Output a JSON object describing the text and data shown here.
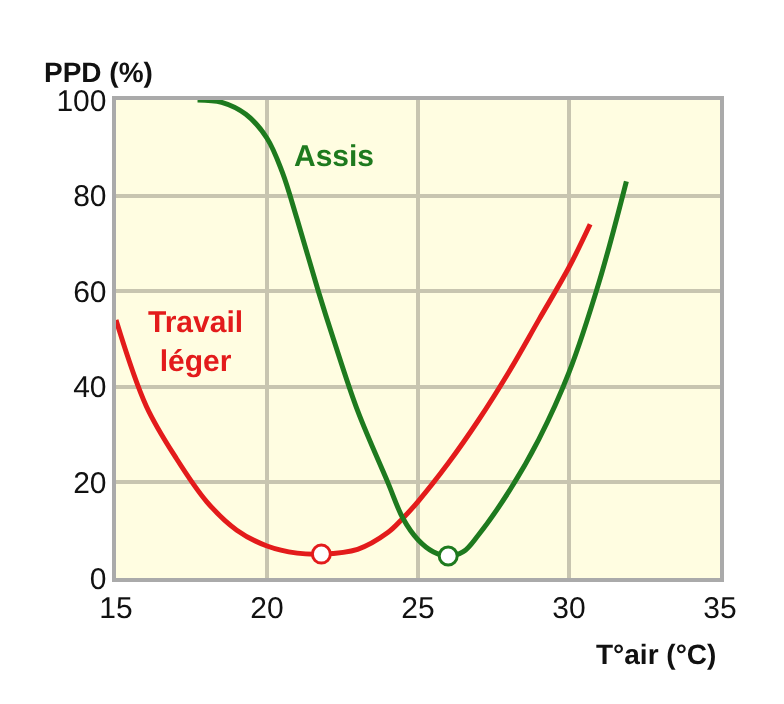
{
  "chart_data": {
    "type": "line",
    "xlabel": "T°air (°C)",
    "ylabel": "PPD (%)",
    "xlim": [
      15,
      35
    ],
    "xticks": [
      15,
      20,
      25,
      30,
      35
    ],
    "ylim": [
      0,
      100
    ],
    "yticks": [
      0,
      20,
      40,
      60,
      80,
      100
    ],
    "grid": true,
    "legend": false,
    "marker": "none",
    "line_style": "solid",
    "series": [
      {
        "name": "Travail\nléger",
        "color": "#e31b1b",
        "x": [
          15,
          16,
          17,
          18,
          19,
          20,
          21,
          21.8,
          23,
          24,
          24.5,
          25,
          26,
          27,
          28,
          29,
          30,
          30.7
        ],
        "values": [
          54,
          36,
          25,
          16,
          10,
          6.7,
          5.2,
          5,
          6,
          9.5,
          12.5,
          16,
          24,
          33,
          43,
          54,
          65,
          74
        ]
      },
      {
        "name": "Assis",
        "color": "#1e7a1e",
        "x": [
          17.7,
          18.5,
          19.3,
          20,
          20.5,
          21,
          21.7,
          22.2,
          23,
          24,
          24.5,
          25,
          25.5,
          26,
          26.5,
          27,
          28,
          29,
          30,
          31,
          31.9
        ],
        "values": [
          100,
          99.5,
          97,
          92,
          85,
          75,
          60,
          50,
          35,
          20,
          12.5,
          8,
          5.5,
          4.6,
          5.5,
          9,
          18,
          29,
          43,
          62,
          83
        ]
      },
      {
        "type": "scatter",
        "marker": "circle",
        "x": [
          21.8,
          26
        ],
        "values": [
          5,
          4.6
        ],
        "colors": [
          "#e31b1b",
          "#1e7a1e"
        ]
      }
    ]
  }
}
